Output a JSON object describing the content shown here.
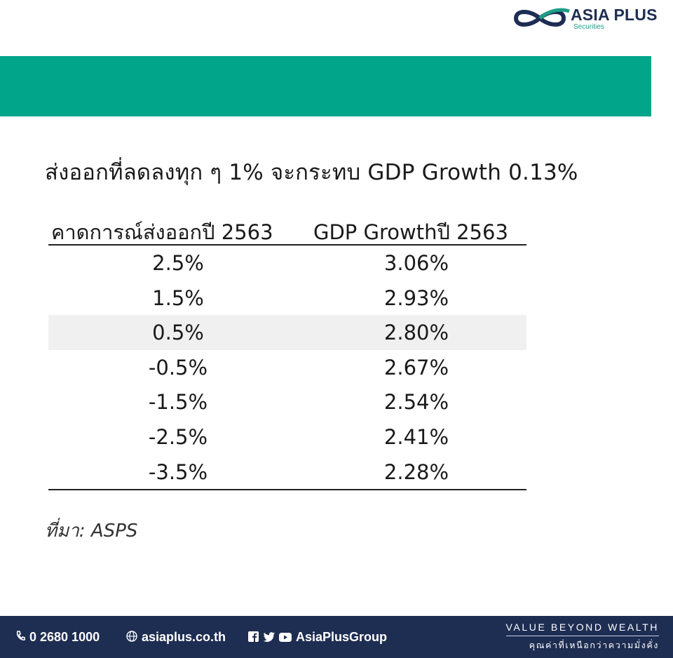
{
  "logo": {
    "brand": "ASIA PLUS",
    "sub": "Securities"
  },
  "headline": "ส่งออกที่ลดลงทุก ๆ 1% จะกระทบ GDP Growth 0.13%",
  "table": {
    "headers": [
      "คาดการณ์ส่งออกปี 2563",
      "GDP Growthปี 2563"
    ],
    "rows": [
      [
        "2.5%",
        "3.06%"
      ],
      [
        "1.5%",
        "2.93%"
      ],
      [
        "0.5%",
        "2.80%"
      ],
      [
        "-0.5%",
        "2.67%"
      ],
      [
        "-1.5%",
        "2.54%"
      ],
      [
        "-2.5%",
        "2.41%"
      ],
      [
        "-3.5%",
        "2.28%"
      ]
    ]
  },
  "source": "ที่มา: ASPS",
  "footer": {
    "phone": "0 2680 1000",
    "website": "asiaplus.co.th",
    "social": "AsiaPlusGroup",
    "tagline_en": "VALUE BEYOND WEALTH",
    "tagline_th": "คุณค่าที่เหนือกว่าความมั่งคั่ง"
  },
  "colors": {
    "teal": "#00a58a",
    "navy": "#1e2d52"
  }
}
